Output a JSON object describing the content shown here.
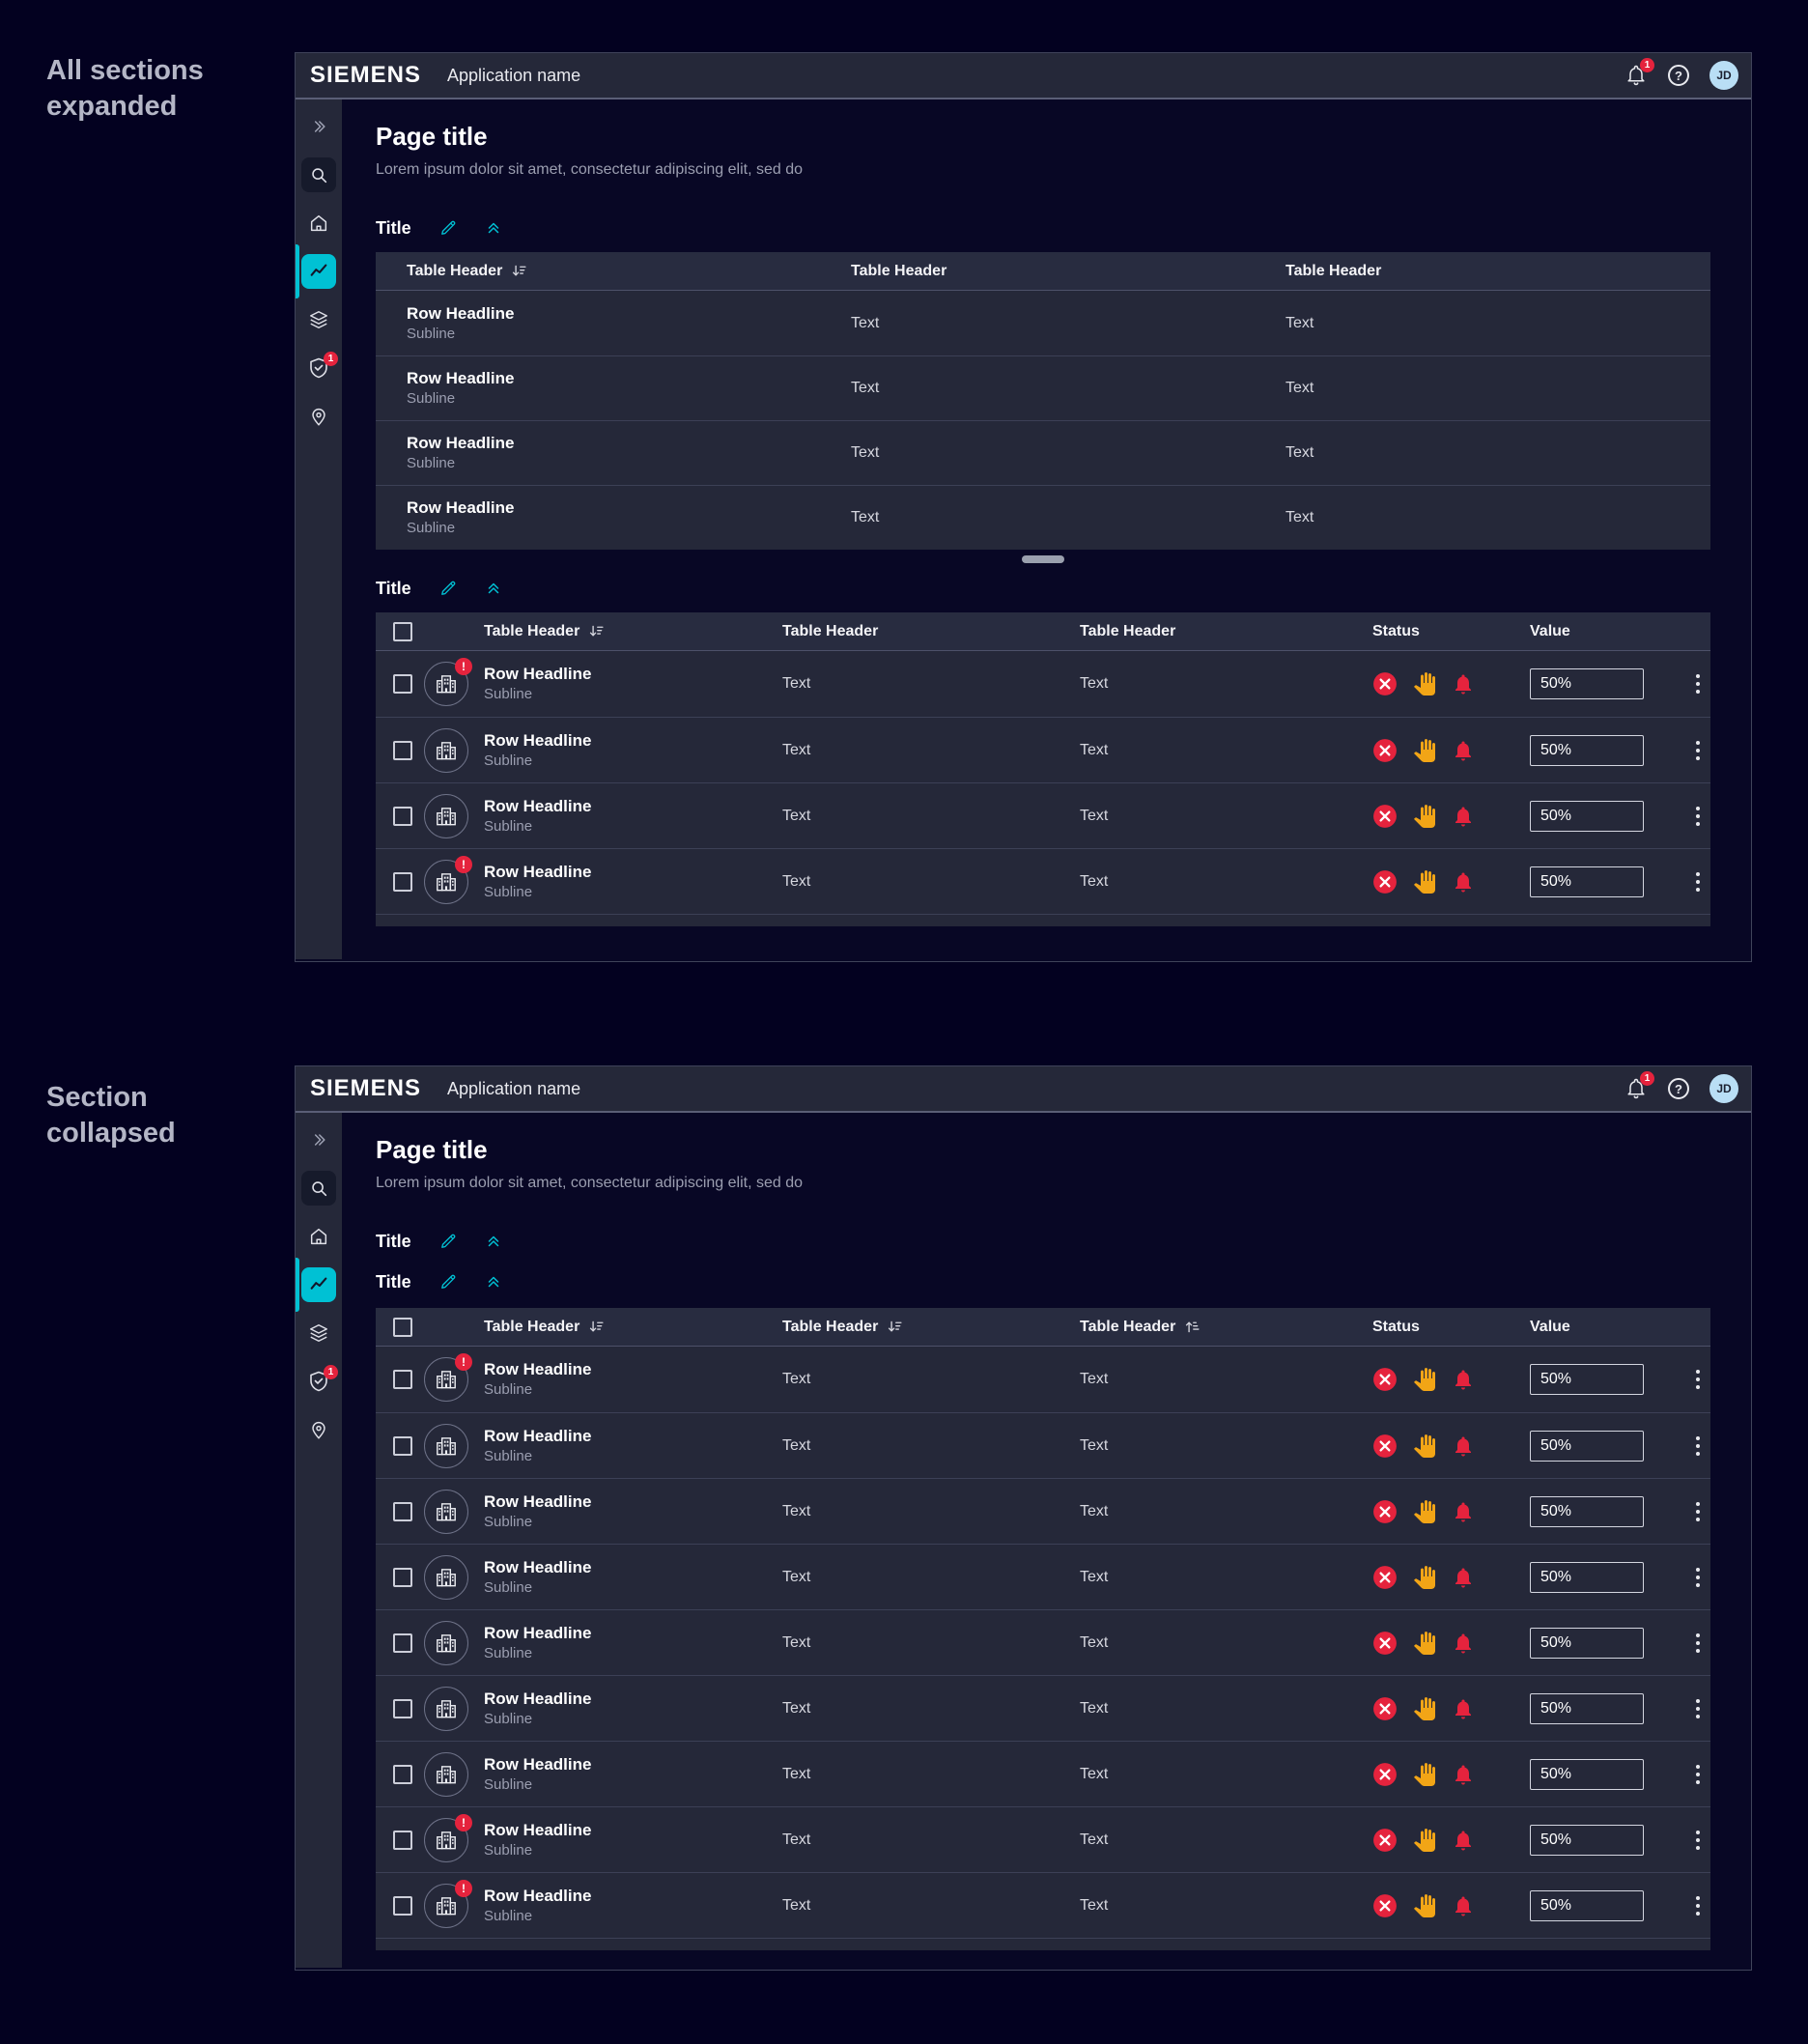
{
  "captions": {
    "expanded": "All sections expanded",
    "collapsed": "Section collapsed"
  },
  "app": {
    "logo": "SIEMENS",
    "name": "Application name",
    "notification_count": "1",
    "avatar_initials": "JD"
  },
  "glyphs": {
    "help": "?",
    "alert": "!"
  },
  "colors": {
    "accent": "#00c1d4",
    "red": "#e5233d",
    "orange": "#f2a516",
    "avatar_blue": "#b9def5"
  },
  "page": {
    "title": "Page title",
    "subtitle": "Lorem ipsum dolor sit amet, consectetur adipiscing elit, sed do"
  },
  "sidebar": {
    "items": [
      {
        "icon": "double-chevron-right"
      },
      {
        "icon": "search"
      },
      {
        "icon": "home"
      },
      {
        "icon": "line-chart",
        "active": true
      },
      {
        "icon": "layers"
      },
      {
        "icon": "shield-check",
        "badge": "1"
      },
      {
        "icon": "location-pin"
      }
    ]
  },
  "section_title": "Title",
  "status_icons": [
    "cancel",
    "hand",
    "bell"
  ],
  "w1": {
    "t1": {
      "headers": [
        {
          "label": "Table Header",
          "sort": "desc"
        },
        {
          "label": "Table Header",
          "sort": null
        },
        {
          "label": "Table Header",
          "sort": null
        }
      ],
      "rows": [
        {
          "headline": "Row Headline",
          "subline": "Subline",
          "col2": "Text",
          "col3": "Text"
        },
        {
          "headline": "Row Headline",
          "subline": "Subline",
          "col2": "Text",
          "col3": "Text"
        },
        {
          "headline": "Row Headline",
          "subline": "Subline",
          "col2": "Text",
          "col3": "Text"
        },
        {
          "headline": "Row Headline",
          "subline": "Subline",
          "col2": "Text",
          "col3": "Text"
        }
      ]
    },
    "t2": {
      "headers": [
        {
          "label": "Table Header",
          "sort": "desc"
        },
        {
          "label": "Table Header",
          "sort": null
        },
        {
          "label": "Table Header",
          "sort": null
        },
        {
          "label": "Status",
          "sort": null
        },
        {
          "label": "Value",
          "sort": null
        }
      ],
      "rows": [
        {
          "headline": "Row Headline",
          "subline": "Subline",
          "col2": "Text",
          "col3": "Text",
          "alert": true,
          "value": "50%"
        },
        {
          "headline": "Row Headline",
          "subline": "Subline",
          "col2": "Text",
          "col3": "Text",
          "alert": false,
          "value": "50%"
        },
        {
          "headline": "Row Headline",
          "subline": "Subline",
          "col2": "Text",
          "col3": "Text",
          "alert": false,
          "value": "50%"
        },
        {
          "headline": "Row Headline",
          "subline": "Subline",
          "col2": "Text",
          "col3": "Text",
          "alert": true,
          "value": "50%"
        }
      ]
    }
  },
  "w2": {
    "table": {
      "headers": [
        {
          "label": "Table Header",
          "sort": "desc"
        },
        {
          "label": "Table Header",
          "sort": "desc"
        },
        {
          "label": "Table Header",
          "sort": "asc"
        },
        {
          "label": "Status",
          "sort": null
        },
        {
          "label": "Value",
          "sort": null
        }
      ],
      "rows": [
        {
          "headline": "Row Headline",
          "subline": "Subline",
          "col2": "Text",
          "col3": "Text",
          "alert": true,
          "value": "50%"
        },
        {
          "headline": "Row Headline",
          "subline": "Subline",
          "col2": "Text",
          "col3": "Text",
          "alert": false,
          "value": "50%"
        },
        {
          "headline": "Row Headline",
          "subline": "Subline",
          "col2": "Text",
          "col3": "Text",
          "alert": false,
          "value": "50%"
        },
        {
          "headline": "Row Headline",
          "subline": "Subline",
          "col2": "Text",
          "col3": "Text",
          "alert": false,
          "value": "50%"
        },
        {
          "headline": "Row Headline",
          "subline": "Subline",
          "col2": "Text",
          "col3": "Text",
          "alert": false,
          "value": "50%"
        },
        {
          "headline": "Row Headline",
          "subline": "Subline",
          "col2": "Text",
          "col3": "Text",
          "alert": false,
          "value": "50%"
        },
        {
          "headline": "Row Headline",
          "subline": "Subline",
          "col2": "Text",
          "col3": "Text",
          "alert": false,
          "value": "50%"
        },
        {
          "headline": "Row Headline",
          "subline": "Subline",
          "col2": "Text",
          "col3": "Text",
          "alert": true,
          "value": "50%"
        },
        {
          "headline": "Row Headline",
          "subline": "Subline",
          "col2": "Text",
          "col3": "Text",
          "alert": true,
          "value": "50%"
        }
      ]
    }
  }
}
